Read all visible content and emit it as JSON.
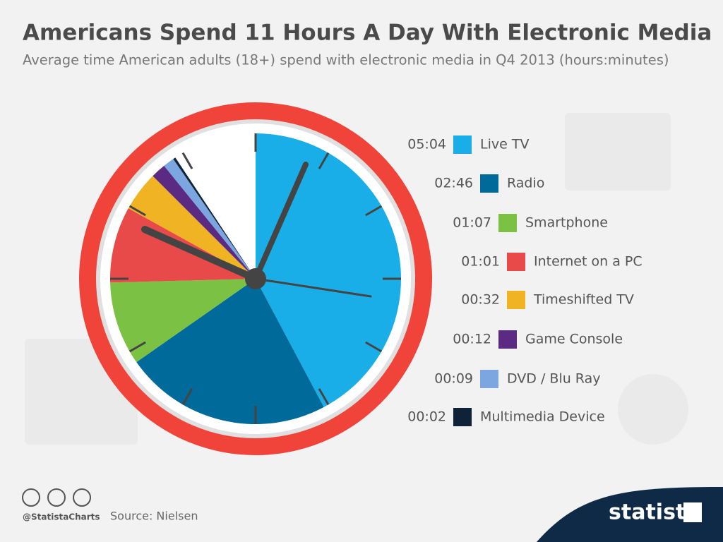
{
  "chart_data": {
    "type": "pie",
    "title": "Americans Spend 11 Hours A Day With Electronic Media",
    "subtitle": "Average time American adults (18+) spend with electronic media in Q4 2013 (hours:minutes)",
    "categories": [
      "Live TV",
      "Radio",
      "Smartphone",
      "Internet on a PC",
      "Timeshifted TV",
      "Game Console",
      "DVD / Blu Ray",
      "Multimedia Device"
    ],
    "values": [
      304,
      166,
      67,
      61,
      32,
      12,
      9,
      2
    ],
    "value_labels": [
      "05:04",
      "02:46",
      "01:07",
      "01:01",
      "00:32",
      "00:12",
      "00:09",
      "00:02"
    ],
    "colors": [
      "#1aaee8",
      "#006a9a",
      "#7bc143",
      "#e84a4a",
      "#f0b323",
      "#5b2a82",
      "#7ca6e0",
      "#0e2238"
    ],
    "ylim": [
      0,
      720
    ]
  },
  "footer": {
    "handle": "@StatistaCharts",
    "source": "Source: Nielsen",
    "brand": "statista"
  }
}
